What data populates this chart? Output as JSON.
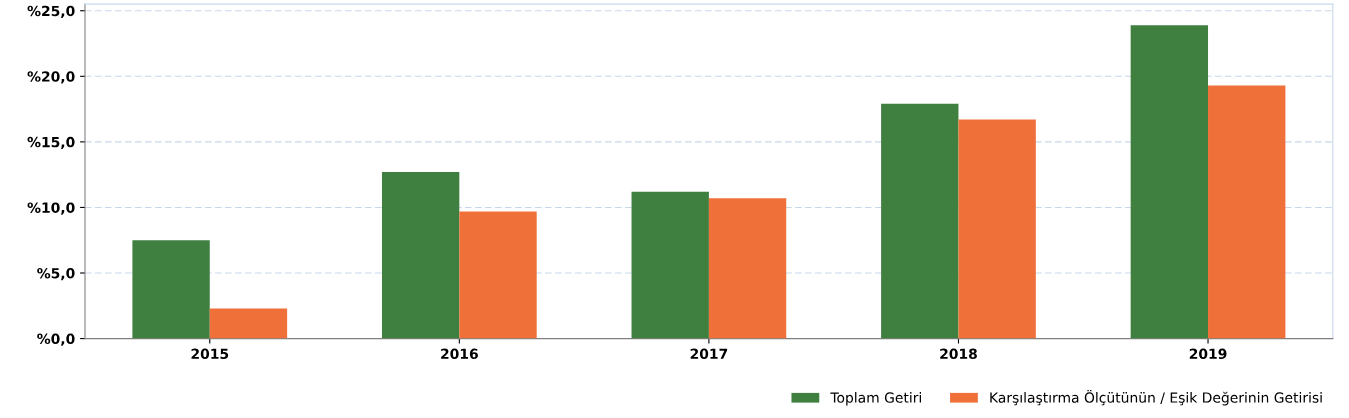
{
  "chart_data": {
    "type": "bar",
    "categories": [
      "2015",
      "2016",
      "2017",
      "2018",
      "2019"
    ],
    "series": [
      {
        "name": "Toplam Getiri",
        "color": "#3f7f3f",
        "values": [
          7.5,
          12.7,
          11.2,
          17.9,
          23.9
        ]
      },
      {
        "name": "Karşılaştırma Ölçütünün / Eşik Değerinin Getirisi",
        "color": "#f0703a",
        "values": [
          2.3,
          9.7,
          10.7,
          16.7,
          19.3
        ]
      }
    ],
    "ylim": [
      0,
      25.5
    ],
    "yticks": [
      {
        "value": 0,
        "label": "%0,0"
      },
      {
        "value": 5,
        "label": "%5,0"
      },
      {
        "value": 10,
        "label": "%10,0"
      },
      {
        "value": 15,
        "label": "%15,0"
      },
      {
        "value": 20,
        "label": "%20,0"
      },
      {
        "value": 25,
        "label": "%25,0"
      }
    ],
    "grid": "y",
    "legend": "bottom right"
  }
}
